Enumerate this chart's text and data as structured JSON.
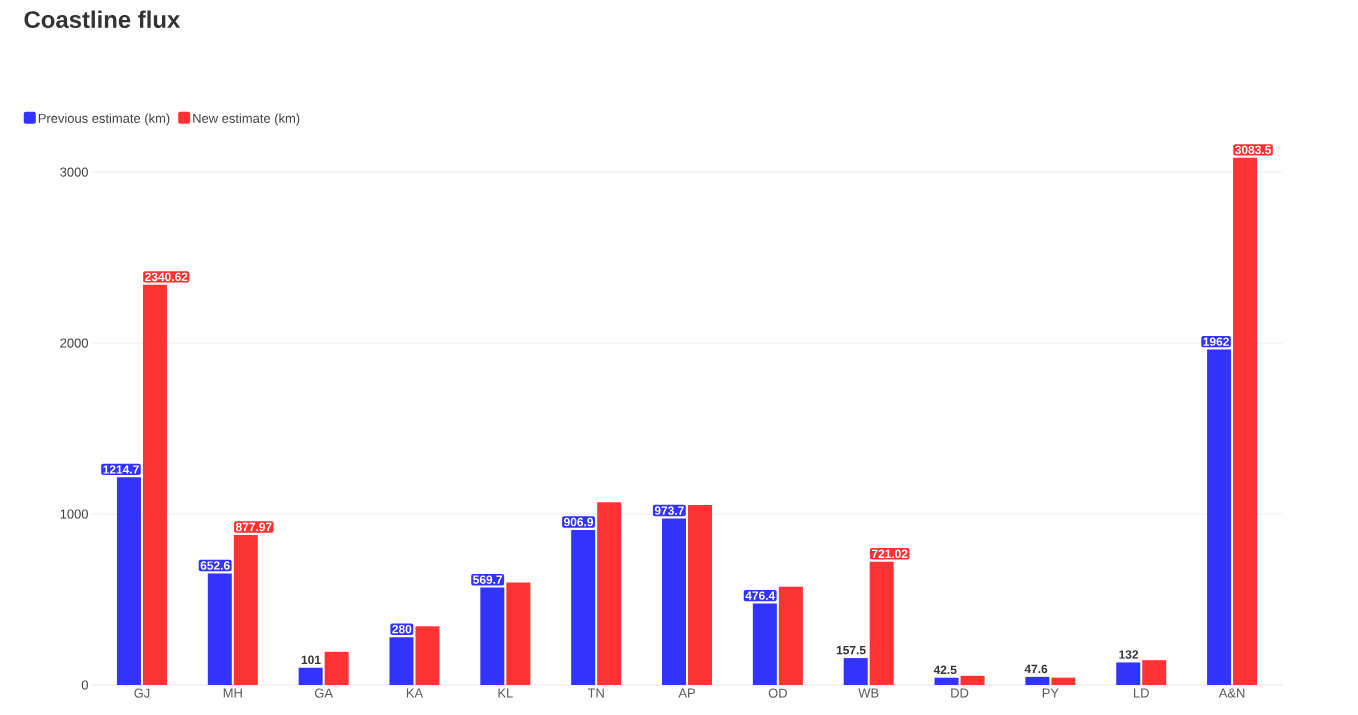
{
  "chart_data": {
    "type": "bar",
    "title": "Coastline flux",
    "categories": [
      "GJ",
      "MH",
      "GA",
      "KA",
      "KL",
      "TN",
      "AP",
      "OD",
      "WB",
      "DD",
      "PY",
      "LD",
      "A&N"
    ],
    "series": [
      {
        "name": "Previous estimate (km)",
        "color": "#3333ff",
        "values": [
          1214.7,
          652.6,
          101,
          280,
          569.7,
          906.9,
          973.7,
          476.4,
          157.5,
          42.5,
          47.6,
          132,
          1962
        ],
        "value_labels": [
          "1214.7",
          "652.6",
          "101",
          "280",
          "569.7",
          "906.9",
          "973.7",
          "476.4",
          "157.5",
          "42.5",
          "47.6",
          "132",
          "1962"
        ]
      },
      {
        "name": "New estimate (km)",
        "color": "#ff3333",
        "values": [
          2340.62,
          877.97,
          194,
          343,
          600,
          1069,
          1053,
          575,
          721.02,
          54,
          43,
          145,
          3083.5
        ],
        "value_labels": [
          "2340.62",
          "877.97",
          null,
          null,
          null,
          null,
          null,
          null,
          "721.02",
          null,
          null,
          null,
          "3083.5"
        ]
      }
    ],
    "ylim": [
      0,
      3100
    ],
    "yticks": [
      0,
      1000,
      2000,
      3000
    ],
    "grid": "y",
    "legend": "top left"
  }
}
